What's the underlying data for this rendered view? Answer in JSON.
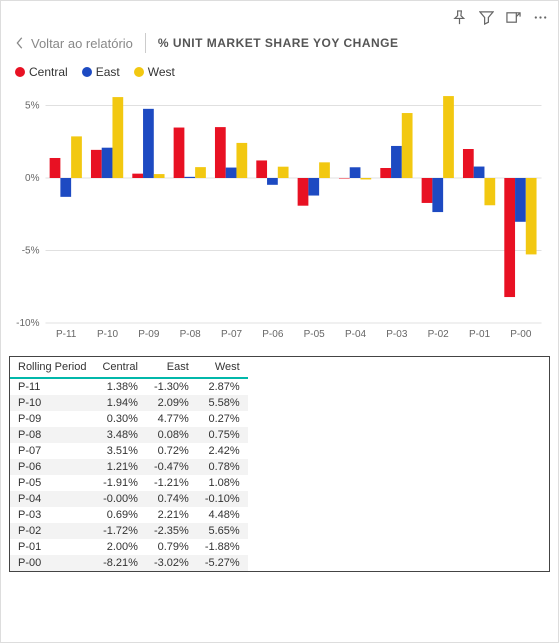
{
  "header": {
    "back_label": "Voltar ao relatório",
    "title": "% UNIT MARKET SHARE YOY CHANGE"
  },
  "legend": {
    "series": [
      {
        "name": "Central",
        "color": "#e81123"
      },
      {
        "name": "East",
        "color": "#1d4ac2"
      },
      {
        "name": "West",
        "color": "#f2c811"
      }
    ]
  },
  "chart": {
    "type": "bar",
    "categories": [
      "P-11",
      "P-10",
      "P-09",
      "P-08",
      "P-07",
      "P-06",
      "P-05",
      "P-04",
      "P-03",
      "P-02",
      "P-01",
      "P-00"
    ],
    "series": {
      "Central": [
        1.38,
        1.94,
        0.3,
        3.48,
        3.51,
        1.21,
        -1.91,
        -0.0,
        0.69,
        -1.72,
        2.0,
        -8.21
      ],
      "East": [
        -1.3,
        2.09,
        4.77,
        0.08,
        0.72,
        -0.47,
        -1.21,
        0.74,
        2.21,
        -2.35,
        0.79,
        -3.02
      ],
      "West": [
        2.87,
        5.58,
        0.27,
        0.75,
        2.42,
        0.78,
        1.08,
        -0.1,
        4.48,
        5.65,
        -1.88,
        -5.27
      ]
    },
    "colors": {
      "Central": "#e81123",
      "East": "#1d4ac2",
      "West": "#f2c811"
    },
    "ylim": [
      -10,
      6
    ],
    "ytick_step": 5,
    "background_color": "#ffffff",
    "grid_color": "#e0e0e0",
    "axis_fontsize": 10,
    "bar_group_gap": 0.2,
    "bar_width": 0.26
  },
  "table": {
    "columns": [
      "Rolling Period",
      "Central",
      "East",
      "West"
    ],
    "rows": [
      [
        "P-11",
        "1.38%",
        "-1.30%",
        "2.87%"
      ],
      [
        "P-10",
        "1.94%",
        "2.09%",
        "5.58%"
      ],
      [
        "P-09",
        "0.30%",
        "4.77%",
        "0.27%"
      ],
      [
        "P-08",
        "3.48%",
        "0.08%",
        "0.75%"
      ],
      [
        "P-07",
        "3.51%",
        "0.72%",
        "2.42%"
      ],
      [
        "P-06",
        "1.21%",
        "-0.47%",
        "0.78%"
      ],
      [
        "P-05",
        "-1.91%",
        "-1.21%",
        "1.08%"
      ],
      [
        "P-04",
        "-0.00%",
        "0.74%",
        "-0.10%"
      ],
      [
        "P-03",
        "0.69%",
        "2.21%",
        "4.48%"
      ],
      [
        "P-02",
        "-1.72%",
        "-2.35%",
        "5.65%"
      ],
      [
        "P-01",
        "2.00%",
        "0.79%",
        "-1.88%"
      ],
      [
        "P-00",
        "-8.21%",
        "-3.02%",
        "-5.27%"
      ]
    ]
  }
}
